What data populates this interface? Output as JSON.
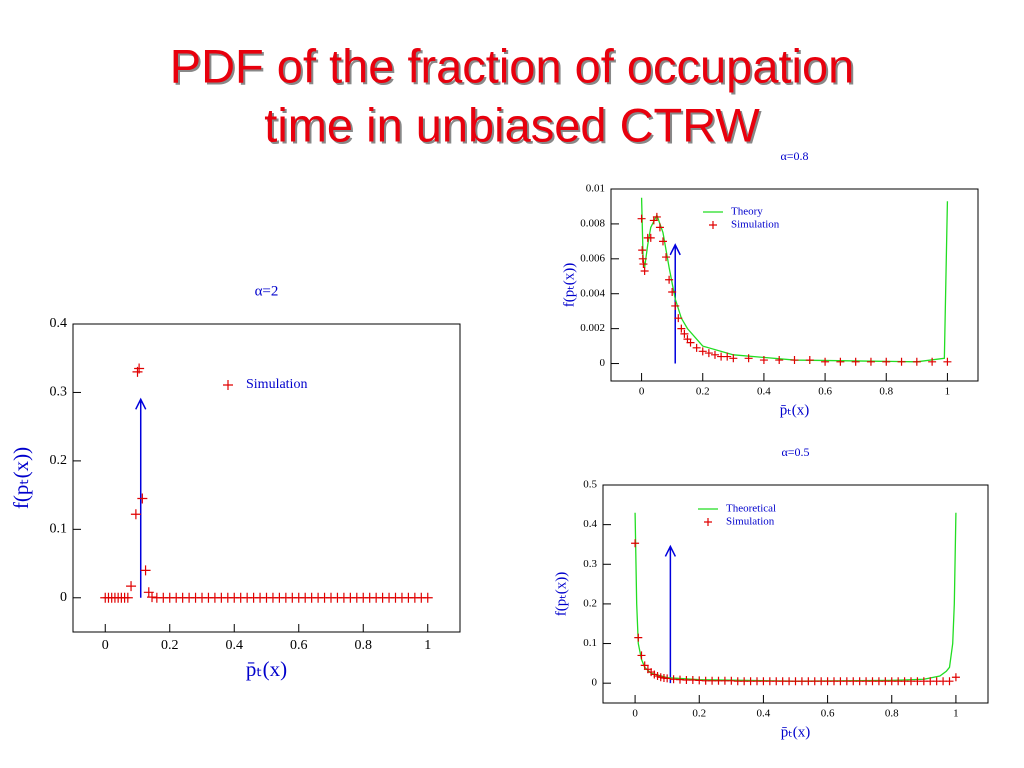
{
  "slide_title": [
    "PDF of the fraction of occupation",
    "time in unbiased CTRW"
  ],
  "chart_data": [
    {
      "type": "scatter",
      "title": "α=2",
      "xlabel": "p̄ₜ(x)",
      "ylabel": "f(pₜ(x))",
      "xlim": [
        -0.1,
        1.1
      ],
      "ylim": [
        -0.05,
        0.4
      ],
      "xticks": [
        0,
        0.2,
        0.4,
        0.6,
        0.8,
        1
      ],
      "yticks": [
        0,
        0.1,
        0.2,
        0.3,
        0.4
      ],
      "legend": "upper right",
      "series": [
        {
          "name": "Simulation",
          "color": "#e00000",
          "mode": "markers",
          "x": [
            0,
            0.01,
            0.02,
            0.03,
            0.04,
            0.05,
            0.06,
            0.07,
            0.08,
            0.095,
            0.1,
            0.105,
            0.115,
            0.125,
            0.135,
            0.145,
            0.16,
            0.18,
            0.2,
            0.22,
            0.24,
            0.26,
            0.28,
            0.3,
            0.32,
            0.34,
            0.36,
            0.38,
            0.4,
            0.42,
            0.44,
            0.46,
            0.48,
            0.5,
            0.52,
            0.54,
            0.56,
            0.58,
            0.6,
            0.62,
            0.64,
            0.66,
            0.68,
            0.7,
            0.72,
            0.74,
            0.76,
            0.78,
            0.8,
            0.82,
            0.84,
            0.86,
            0.88,
            0.9,
            0.92,
            0.94,
            0.96,
            0.98,
            1
          ],
          "values": [
            0,
            0,
            0,
            0,
            0,
            0,
            0,
            0,
            0.017,
            0.122,
            0.33,
            0.335,
            0.145,
            0.04,
            0.008,
            0.001,
            0,
            0,
            0,
            0,
            0,
            0,
            0,
            0,
            0,
            0,
            0,
            0,
            0,
            0,
            0,
            0,
            0,
            0,
            0,
            0,
            0,
            0,
            0,
            0,
            0,
            0,
            0,
            0,
            0,
            0,
            0,
            0,
            0,
            0,
            0,
            0,
            0,
            0,
            0,
            0,
            0,
            0,
            0
          ]
        }
      ],
      "arrow": {
        "color": "#0000dd",
        "x": 0.11,
        "y": [
          0,
          0.29
        ]
      }
    },
    {
      "type": "line",
      "title": "α=0.8",
      "xlabel": "p̄ₜ(x)",
      "ylabel": "f(pₜ(x))",
      "xlim": [
        -0.1,
        1.1
      ],
      "ylim": [
        -0.001,
        0.01
      ],
      "xticks": [
        0,
        0.2,
        0.4,
        0.6,
        0.8,
        1
      ],
      "yticks": [
        0,
        0.002,
        0.004,
        0.006,
        0.008,
        0.01
      ],
      "legend": "upper right",
      "series": [
        {
          "name": "Theory",
          "color": "#22dd22",
          "mode": "lines",
          "x": [
            0,
            0.005,
            0.01,
            0.02,
            0.03,
            0.05,
            0.07,
            0.09,
            0.11,
            0.13,
            0.15,
            0.2,
            0.3,
            0.5,
            0.7,
            0.9,
            0.99,
            1.0
          ],
          "values": [
            0.0095,
            0.006,
            0.0055,
            0.0068,
            0.0078,
            0.0085,
            0.0075,
            0.0055,
            0.0037,
            0.0026,
            0.002,
            0.001,
            0.0005,
            0.0002,
            0.00015,
            0.0001,
            0.0003,
            0.0093
          ]
        },
        {
          "name": "Simulation",
          "color": "#e00000",
          "mode": "markers",
          "x": [
            0,
            0.002,
            0.004,
            0.006,
            0.01,
            0.02,
            0.03,
            0.04,
            0.05,
            0.06,
            0.07,
            0.08,
            0.09,
            0.1,
            0.11,
            0.12,
            0.13,
            0.14,
            0.15,
            0.16,
            0.18,
            0.2,
            0.22,
            0.24,
            0.26,
            0.28,
            0.3,
            0.35,
            0.4,
            0.45,
            0.5,
            0.55,
            0.6,
            0.65,
            0.7,
            0.75,
            0.8,
            0.85,
            0.9,
            0.95,
            1.0
          ],
          "values": [
            0.0083,
            0.0065,
            0.006,
            0.0057,
            0.0053,
            0.0072,
            0.0072,
            0.0082,
            0.0084,
            0.0078,
            0.007,
            0.0061,
            0.0048,
            0.0041,
            0.0033,
            0.0026,
            0.002,
            0.0017,
            0.0014,
            0.0012,
            0.0009,
            0.0007,
            0.0006,
            0.0005,
            0.0004,
            0.0004,
            0.0003,
            0.0003,
            0.0002,
            0.0002,
            0.0002,
            0.0002,
            0.0001,
            0.0001,
            0.0001,
            0.0001,
            0.0001,
            0.0001,
            0.0001,
            0.0001,
            0.0001
          ]
        }
      ],
      "arrow": {
        "color": "#0000dd",
        "x": 0.11,
        "y": [
          0,
          0.0068
        ]
      }
    },
    {
      "type": "line",
      "title": "α=0.5",
      "xlabel": "p̄ₜ(x)",
      "ylabel": "f(pₜ(x))",
      "xlim": [
        -0.1,
        1.1
      ],
      "ylim": [
        -0.05,
        0.5
      ],
      "xticks": [
        0,
        0.2,
        0.4,
        0.6,
        0.8,
        1
      ],
      "yticks": [
        0,
        0.1,
        0.2,
        0.3,
        0.4,
        0.5
      ],
      "legend": "upper right",
      "series": [
        {
          "name": "Theoretical",
          "color": "#22dd22",
          "mode": "lines",
          "x": [
            0,
            0.005,
            0.01,
            0.02,
            0.03,
            0.05,
            0.1,
            0.2,
            0.5,
            0.8,
            0.9,
            0.95,
            0.97,
            0.98,
            0.99,
            0.995,
            1.0
          ],
          "values": [
            0.43,
            0.2,
            0.1,
            0.06,
            0.04,
            0.025,
            0.014,
            0.009,
            0.005,
            0.007,
            0.01,
            0.018,
            0.03,
            0.04,
            0.1,
            0.2,
            0.43
          ]
        },
        {
          "name": "Simulation",
          "color": "#e00000",
          "mode": "markers",
          "x": [
            0,
            0.01,
            0.02,
            0.03,
            0.04,
            0.05,
            0.06,
            0.07,
            0.08,
            0.09,
            0.1,
            0.12,
            0.14,
            0.16,
            0.18,
            0.2,
            0.22,
            0.24,
            0.26,
            0.28,
            0.3,
            0.32,
            0.34,
            0.36,
            0.38,
            0.4,
            0.42,
            0.44,
            0.46,
            0.48,
            0.5,
            0.52,
            0.54,
            0.56,
            0.58,
            0.6,
            0.62,
            0.64,
            0.66,
            0.68,
            0.7,
            0.72,
            0.74,
            0.76,
            0.78,
            0.8,
            0.82,
            0.84,
            0.86,
            0.88,
            0.9,
            0.92,
            0.94,
            0.96,
            0.98,
            1.0
          ],
          "values": [
            0.353,
            0.115,
            0.07,
            0.045,
            0.035,
            0.028,
            0.022,
            0.018,
            0.015,
            0.013,
            0.012,
            0.01,
            0.009,
            0.008,
            0.008,
            0.007,
            0.006,
            0.006,
            0.006,
            0.006,
            0.006,
            0.005,
            0.005,
            0.005,
            0.005,
            0.005,
            0.005,
            0.005,
            0.005,
            0.005,
            0.005,
            0.005,
            0.005,
            0.005,
            0.005,
            0.005,
            0.005,
            0.005,
            0.005,
            0.005,
            0.005,
            0.005,
            0.005,
            0.005,
            0.005,
            0.005,
            0.005,
            0.005,
            0.005,
            0.005,
            0.005,
            0.005,
            0.005,
            0.005,
            0.005,
            0.015
          ]
        }
      ],
      "arrow": {
        "color": "#0000dd",
        "x": 0.11,
        "y": [
          0,
          0.345
        ]
      }
    }
  ]
}
